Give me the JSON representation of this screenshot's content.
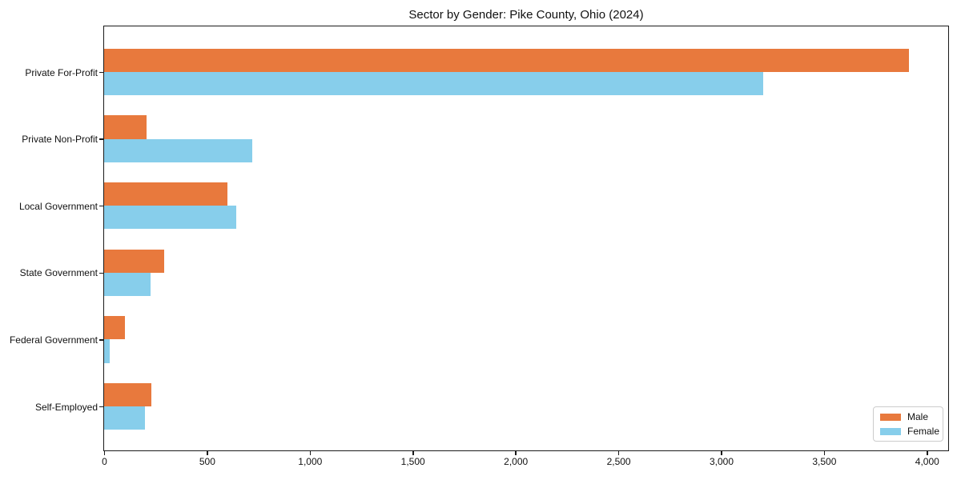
{
  "chart_data": {
    "type": "bar",
    "orientation": "horizontal",
    "title": "Sector by Gender: Pike County, Ohio (2024)",
    "categories": [
      "Private For-Profit",
      "Private Non-Profit",
      "Local Government",
      "State Government",
      "Federal Government",
      "Self-Employed"
    ],
    "series": [
      {
        "name": "Male",
        "color": "#e8793d",
        "values": [
          3910,
          205,
          600,
          290,
          100,
          230
        ]
      },
      {
        "name": "Female",
        "color": "#87ceeb",
        "values": [
          3200,
          720,
          640,
          225,
          27,
          200
        ]
      }
    ],
    "xlabel": "",
    "ylabel": "",
    "xlim": [
      0,
      4100
    ],
    "xticks": [
      0,
      500,
      1000,
      1500,
      2000,
      2500,
      3000,
      3500,
      4000
    ],
    "xtick_labels": [
      "0",
      "500",
      "1,000",
      "1,500",
      "2,000",
      "2,500",
      "3,000",
      "3,500",
      "4,000"
    ],
    "grid": false,
    "legend_position": "lower right"
  }
}
